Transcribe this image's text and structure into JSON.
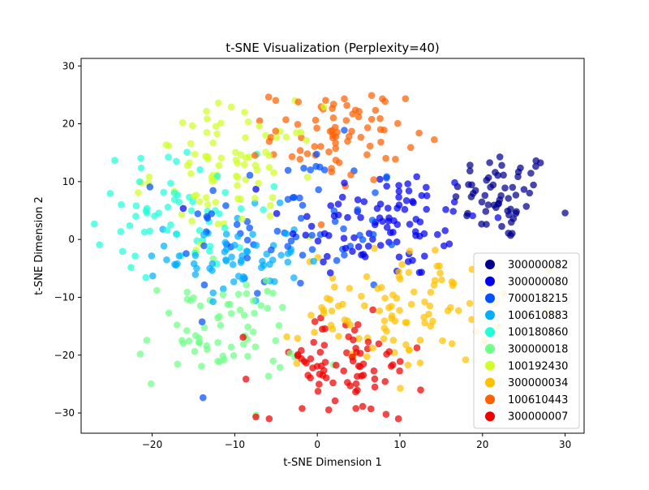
{
  "chart_data": {
    "type": "scatter",
    "title": "t-SNE Visualization (Perplexity=40)",
    "xlabel": "t-SNE Dimension 1",
    "ylabel": "t-SNE Dimension 2",
    "xlim": [
      -28.6,
      32.3
    ],
    "ylim": [
      -33.5,
      31.3
    ],
    "x_ticks": [
      -20,
      -10,
      0,
      10,
      20,
      30
    ],
    "y_ticks": [
      -30,
      -20,
      -10,
      0,
      10,
      20,
      30
    ],
    "x_tick_labels": [
      "−20",
      "−10",
      "0",
      "10",
      "20",
      "30"
    ],
    "y_tick_labels": [
      "−30",
      "−20",
      "−10",
      "0",
      "10",
      "20",
      "30"
    ],
    "grid": false,
    "legend_position": "lower-right",
    "series": [
      {
        "name": "300000082",
        "color": "#00008f",
        "center": [
          22.5,
          7.5
        ],
        "spread": [
          3.0,
          4.0
        ],
        "count": 60
      },
      {
        "name": "300000080",
        "color": "#0000ee",
        "center": [
          8.0,
          3.0
        ],
        "spread": [
          6.0,
          5.0
        ],
        "count": 95
      },
      {
        "name": "700018215",
        "color": "#0050ff",
        "center": [
          -3.0,
          2.0
        ],
        "spread": [
          7.0,
          7.0
        ],
        "count": 70
      },
      {
        "name": "100610883",
        "color": "#00b0ff",
        "center": [
          -10.0,
          -3.0
        ],
        "spread": [
          4.0,
          4.0
        ],
        "count": 65
      },
      {
        "name": "100180860",
        "color": "#20ffd8",
        "center": [
          -17.0,
          5.0
        ],
        "spread": [
          5.0,
          5.0
        ],
        "count": 60
      },
      {
        "name": "300000018",
        "color": "#70ff88",
        "center": [
          -12.0,
          -16.0
        ],
        "spread": [
          5.0,
          5.0
        ],
        "count": 70
      },
      {
        "name": "100192430",
        "color": "#d0ff28",
        "center": [
          -10.0,
          12.0
        ],
        "spread": [
          5.0,
          5.5
        ],
        "count": 85
      },
      {
        "name": "300000034",
        "color": "#ffc000",
        "center": [
          10.0,
          -12.0
        ],
        "spread": [
          6.0,
          5.0
        ],
        "count": 105
      },
      {
        "name": "100610443",
        "color": "#ff6000",
        "center": [
          2.5,
          18.0
        ],
        "spread": [
          4.0,
          4.0
        ],
        "count": 75
      },
      {
        "name": "300000007",
        "color": "#ef0000",
        "center": [
          3.0,
          -22.0
        ],
        "spread": [
          5.0,
          4.5
        ],
        "count": 80
      }
    ]
  }
}
